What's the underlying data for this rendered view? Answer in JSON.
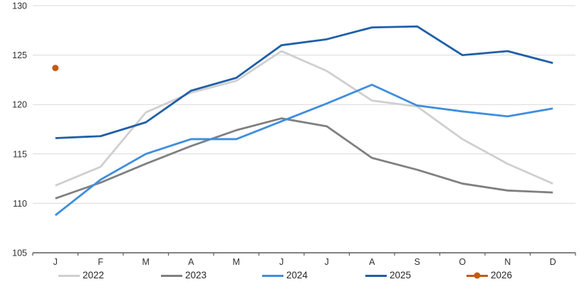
{
  "chart_data": {
    "type": "line",
    "title": "",
    "xlabel": "",
    "ylabel": "",
    "x_categories": [
      "J",
      "F",
      "M",
      "A",
      "M",
      "J",
      "J",
      "A",
      "S",
      "O",
      "N",
      "D"
    ],
    "y_ticks": [
      105,
      110,
      115,
      120,
      125,
      130
    ],
    "ylim": [
      105,
      130
    ],
    "grid": true,
    "legend_position": "bottom",
    "series": [
      {
        "name": "2022",
        "color": "#cfcfcf",
        "line": true,
        "marker": "none",
        "values": [
          111.8,
          113.7,
          119.2,
          121.2,
          122.4,
          125.4,
          123.4,
          120.4,
          119.8,
          116.5,
          114.0,
          112.0
        ]
      },
      {
        "name": "2023",
        "color": "#808080",
        "line": true,
        "marker": "none",
        "values": [
          110.5,
          112.1,
          114.0,
          115.8,
          117.4,
          118.6,
          117.8,
          114.6,
          113.4,
          112.0,
          111.3,
          111.1
        ]
      },
      {
        "name": "2024",
        "color": "#3e8ede",
        "line": true,
        "marker": "none",
        "values": [
          108.8,
          112.4,
          115.0,
          116.5,
          116.5,
          118.3,
          120.1,
          122.0,
          119.9,
          119.3,
          118.8,
          119.6
        ]
      },
      {
        "name": "2025",
        "color": "#1f5fa8",
        "line": true,
        "marker": "none",
        "values": [
          116.6,
          116.8,
          118.2,
          121.4,
          122.7,
          126.0,
          126.6,
          127.8,
          127.9,
          125.0,
          125.4,
          124.2
        ]
      },
      {
        "name": "2026",
        "color": "#c55a11",
        "line": false,
        "marker": "circle",
        "values": [
          123.7,
          null,
          null,
          null,
          null,
          null,
          null,
          null,
          null,
          null,
          null,
          null
        ]
      }
    ]
  },
  "style": {
    "gridline_color": "#d9d9d9",
    "axis_color": "#595959",
    "background": "#ffffff"
  }
}
